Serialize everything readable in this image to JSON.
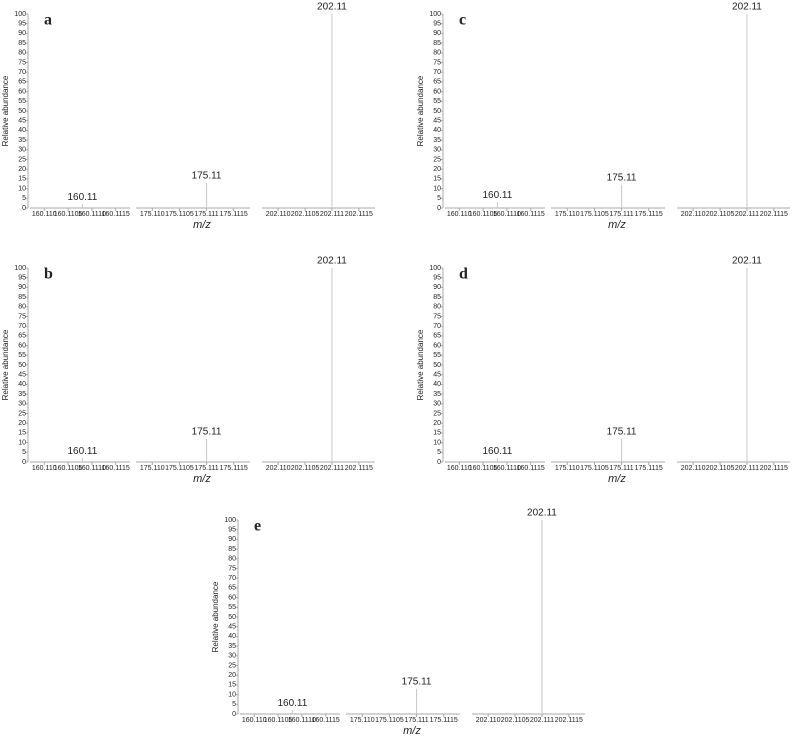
{
  "chart_data": [
    {
      "type": "spectrum",
      "panel_label": "a",
      "ylabel": "Relative abundance",
      "xlabel": "m/z",
      "ylim": [
        0,
        100
      ],
      "yticks": [
        0,
        5,
        10,
        15,
        20,
        25,
        30,
        35,
        40,
        45,
        50,
        55,
        60,
        65,
        70,
        75,
        80,
        85,
        90,
        95,
        100
      ],
      "x_segments": [
        {
          "xlim": [
            160.1097,
            160.1118
          ],
          "xticks": [
            {
              "value": 160.11,
              "label": "160.110"
            },
            160.1105,
            {
              "value": 160.111,
              "label": "160.1110"
            },
            160.1115
          ]
        },
        {
          "xlim": [
            175.1097,
            175.1118
          ],
          "xticks": [
            {
              "value": 175.11,
              "label": "175.110"
            },
            175.1105,
            175.111,
            175.1115
          ]
        },
        {
          "xlim": [
            202.1097,
            202.1118
          ],
          "xticks": [
            {
              "value": 202.11,
              "label": "202.110"
            },
            202.1105,
            202.111,
            202.1115
          ]
        }
      ],
      "x": [
        160.1108,
        175.111,
        202.111
      ],
      "values": [
        2,
        13,
        100
      ],
      "value_labels": [
        "160.11",
        "175.11",
        "202.11"
      ],
      "color": "#c8c8c8"
    },
    {
      "type": "spectrum",
      "panel_label": "b",
      "ylabel": "Relative abundance",
      "xlabel": "m/z",
      "ylim": [
        0,
        100
      ],
      "yticks": [
        0,
        5,
        10,
        15,
        20,
        25,
        30,
        35,
        40,
        45,
        50,
        55,
        60,
        65,
        70,
        75,
        80,
        85,
        90,
        95,
        100
      ],
      "x_segments": [
        {
          "xlim": [
            160.1097,
            160.1118
          ],
          "xticks": [
            {
              "value": 160.11,
              "label": "160.110"
            },
            160.1105,
            {
              "value": 160.111,
              "label": "160.1110"
            },
            160.1115
          ]
        },
        {
          "xlim": [
            175.1097,
            175.1118
          ],
          "xticks": [
            {
              "value": 175.11,
              "label": "175.110"
            },
            175.1105,
            175.111,
            175.1115
          ]
        },
        {
          "xlim": [
            202.1097,
            202.1118
          ],
          "xticks": [
            {
              "value": 202.11,
              "label": "202.110"
            },
            202.1105,
            202.111,
            202.1115
          ]
        }
      ],
      "x": [
        160.1108,
        175.111,
        202.111
      ],
      "values": [
        2,
        12,
        100
      ],
      "value_labels": [
        "160.11",
        "175.11",
        "202.11"
      ],
      "color": "#c8c8c8"
    },
    {
      "type": "spectrum",
      "panel_label": "c",
      "ylabel": "Relative abundance",
      "xlabel": "m/z",
      "ylim": [
        0,
        100
      ],
      "yticks": [
        0,
        5,
        10,
        15,
        20,
        25,
        30,
        35,
        40,
        45,
        50,
        55,
        60,
        65,
        70,
        75,
        80,
        85,
        90,
        95,
        100
      ],
      "x_segments": [
        {
          "xlim": [
            160.1097,
            160.1118
          ],
          "xticks": [
            {
              "value": 160.11,
              "label": "160.110"
            },
            160.1105,
            {
              "value": 160.111,
              "label": "160.1110"
            },
            160.1115
          ]
        },
        {
          "xlim": [
            175.1097,
            175.1118
          ],
          "xticks": [
            {
              "value": 175.11,
              "label": "175.110"
            },
            175.1105,
            175.111,
            175.1115
          ]
        },
        {
          "xlim": [
            202.1097,
            202.1118
          ],
          "xticks": [
            {
              "value": 202.11,
              "label": "202.110"
            },
            202.1105,
            202.111,
            202.1115
          ]
        }
      ],
      "x": [
        160.1108,
        175.111,
        202.111
      ],
      "values": [
        3,
        12,
        100
      ],
      "value_labels": [
        "160.11",
        "175.11",
        "202.11"
      ],
      "color": "#c8c8c8"
    },
    {
      "type": "spectrum",
      "panel_label": "d",
      "ylabel": "Relative abundance",
      "xlabel": "m/z",
      "ylim": [
        0,
        100
      ],
      "yticks": [
        0,
        5,
        10,
        15,
        20,
        25,
        30,
        35,
        40,
        45,
        50,
        55,
        60,
        65,
        70,
        75,
        80,
        85,
        90,
        95,
        100
      ],
      "x_segments": [
        {
          "xlim": [
            160.1097,
            160.1118
          ],
          "xticks": [
            {
              "value": 160.11,
              "label": "160.110"
            },
            160.1105,
            {
              "value": 160.111,
              "label": "160.1110"
            },
            160.1115
          ]
        },
        {
          "xlim": [
            175.1097,
            175.1118
          ],
          "xticks": [
            {
              "value": 175.11,
              "label": "175.110"
            },
            175.1105,
            175.111,
            175.1115
          ]
        },
        {
          "xlim": [
            202.1097,
            202.1118
          ],
          "xticks": [
            {
              "value": 202.11,
              "label": "202.110"
            },
            202.1105,
            202.111,
            202.1115
          ]
        }
      ],
      "x": [
        160.1108,
        175.111,
        202.111
      ],
      "values": [
        2,
        12,
        100
      ],
      "value_labels": [
        "160.11",
        "175.11",
        "202.11"
      ],
      "color": "#c8c8c8"
    },
    {
      "type": "spectrum",
      "panel_label": "e",
      "ylabel": "Relative abundance",
      "xlabel": "m/z",
      "ylim": [
        0,
        100
      ],
      "yticks": [
        0,
        5,
        10,
        15,
        20,
        25,
        30,
        35,
        40,
        45,
        50,
        55,
        60,
        65,
        70,
        75,
        80,
        85,
        90,
        95,
        100
      ],
      "x_segments": [
        {
          "xlim": [
            160.1097,
            160.1118
          ],
          "xticks": [
            {
              "value": 160.11,
              "label": "160.110"
            },
            160.1105,
            {
              "value": 160.111,
              "label": "160.1110"
            },
            160.1115
          ]
        },
        {
          "xlim": [
            175.1097,
            175.1118
          ],
          "xticks": [
            {
              "value": 175.11,
              "label": "175.110"
            },
            175.1105,
            175.111,
            175.1115
          ]
        },
        {
          "xlim": [
            202.1097,
            202.1118
          ],
          "xticks": [
            {
              "value": 202.11,
              "label": "202.110"
            },
            202.1105,
            202.111,
            202.1115
          ]
        }
      ],
      "x": [
        160.1108,
        175.111,
        202.111
      ],
      "values": [
        2,
        13,
        100
      ],
      "value_labels": [
        "160.11",
        "175.11",
        "202.11"
      ],
      "color": "#c8c8c8"
    }
  ]
}
